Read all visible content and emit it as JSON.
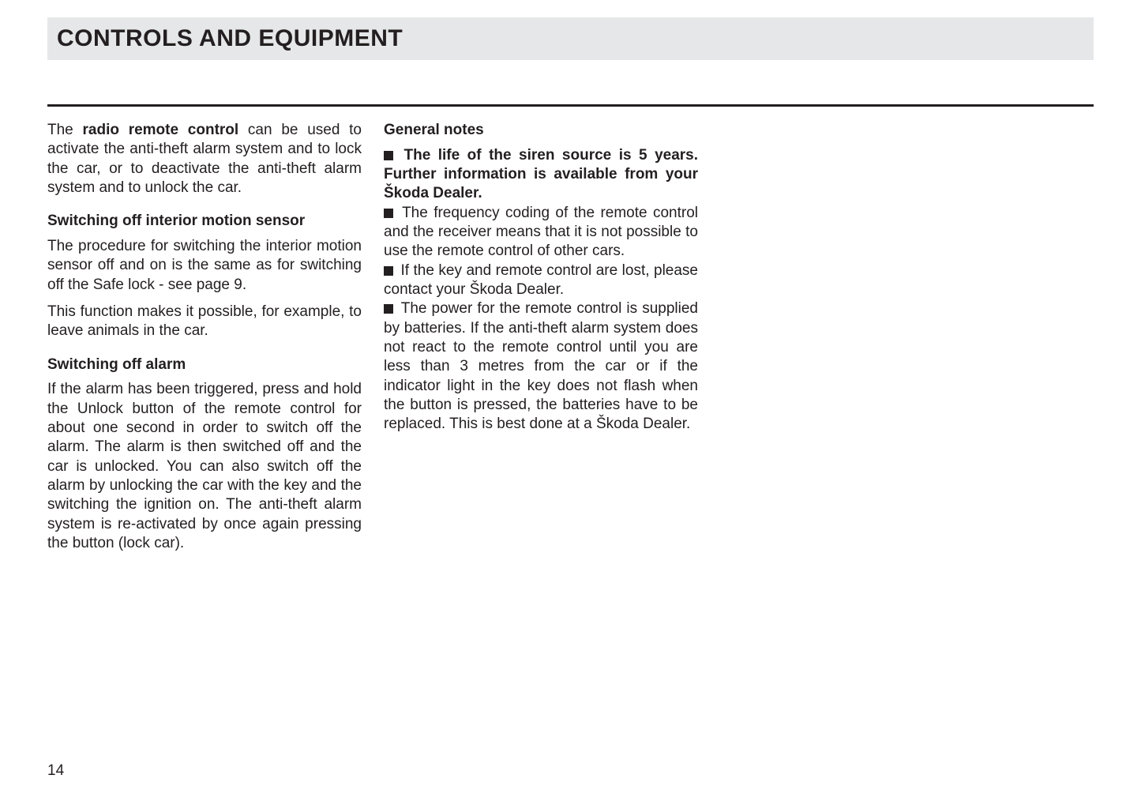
{
  "header": {
    "title": "CONTROLS AND EQUIPMENT"
  },
  "pageNumber": "14",
  "col1": {
    "intro_pre": "The ",
    "intro_bold": "radio remote control",
    "intro_post": " can be used to activate the anti-theft alarm system and to lock the car, or to deactivate the anti-theft alarm system and to unlock the car.",
    "h1": "Switching off interior motion sen­sor",
    "p1": "The procedure for switching the interior mo­tion sensor off and on is the same as for switching off the Safe lock - see page 9.",
    "p2": "This function makes it possible, for examp­le, to leave animals in the car.",
    "h2": "Switching off alarm",
    "p3": "If the alarm has been triggered, press and hold the Unlock button of the remote con­trol for about one second in order to switch off the alarm. The alarm is then switched off and the car is unlocked. You can also switch off the alarm by unlocking the car with the key and the switching the ignition on. The anti-theft alarm system is re-acti­vated by once again pressing the button (lock car)."
  },
  "col2": {
    "h1": "General notes",
    "b1": "The life of the siren source is 5 years. Further information is available from your Škoda Dealer.",
    "b2": "The frequency coding of the remote con­trol and the receiver means that it is not possible to use the remote control of other cars.",
    "b3": "If the key and remote control are lost, please contact your Škoda Dealer.",
    "b4": "The power for the remote control is sup­plied by batteries. If the anti-theft alarm system does not react to the remote con­trol until you are less than 3 metres from the car or if the indicator light in the key does not flash when the button is pressed, the batteries have to be replaced. This is best done at a Škoda Dealer."
  }
}
